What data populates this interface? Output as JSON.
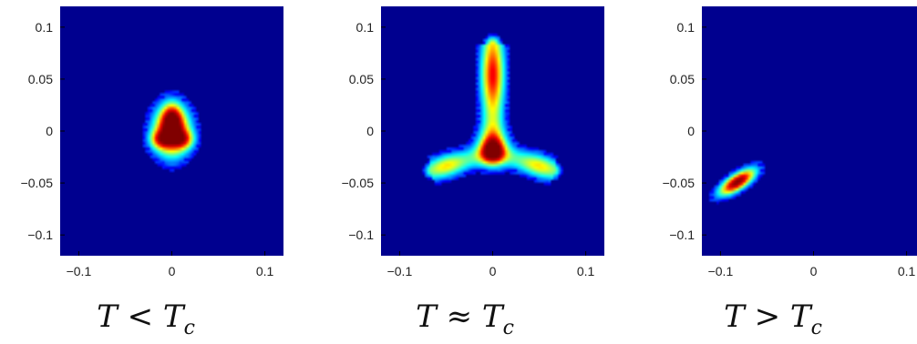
{
  "colors": {
    "background": "#00008f",
    "colormap": [
      "#00008f",
      "#0000ff",
      "#00ffff",
      "#ffff00",
      "#ff0000",
      "#800000"
    ]
  },
  "chart_data": [
    {
      "type": "heatmap",
      "caption": {
        "lhs": "T",
        "op": "<",
        "rhs": "T",
        "rhs_sub": "c"
      },
      "xlim": [
        -0.12,
        0.12
      ],
      "ylim": [
        -0.12,
        0.12
      ],
      "x_ticks": [
        -0.1,
        0,
        0.1
      ],
      "x_tick_labels": [
        "−0.1",
        "0",
        "0.1"
      ],
      "y_ticks": [
        0.1,
        0.05,
        0,
        -0.05,
        -0.1
      ],
      "y_tick_labels": [
        "0.1",
        "0.05",
        "0",
        "−0.05",
        "−0.1"
      ],
      "blobs": [
        {
          "x": 0.0,
          "y": 0.0,
          "sx": 0.013,
          "sy": 0.016,
          "rho": 0,
          "peak": 1.0
        },
        {
          "x": 0.0,
          "y": 0.012,
          "sx": 0.007,
          "sy": 0.01,
          "rho": 0,
          "peak": 0.5
        },
        {
          "x": -0.012,
          "y": -0.008,
          "sx": 0.008,
          "sy": 0.006,
          "rho": 0,
          "peak": 0.45
        },
        {
          "x": 0.012,
          "y": -0.008,
          "sx": 0.008,
          "sy": 0.006,
          "rho": 0,
          "peak": 0.45
        }
      ]
    },
    {
      "type": "heatmap",
      "caption": {
        "lhs": "T",
        "op": "≈",
        "rhs": "T",
        "rhs_sub": "c"
      },
      "xlim": [
        -0.12,
        0.12
      ],
      "ylim": [
        -0.12,
        0.12
      ],
      "x_ticks": [
        -0.1,
        0,
        0.1
      ],
      "x_tick_labels": [
        "−0.1",
        "0",
        "0.1"
      ],
      "y_ticks": [
        0.1,
        0.05,
        0,
        -0.05,
        -0.1
      ],
      "y_tick_labels": [
        "0.1",
        "0.05",
        "0",
        "−0.05",
        "−0.1"
      ],
      "arms": [
        {
          "x0": 0.0,
          "y0": -0.02,
          "x1": 0.0,
          "y1": 0.083,
          "width": 0.0085,
          "peak": 0.78,
          "peak_at": 0.72
        },
        {
          "x0": 0.0,
          "y0": -0.02,
          "x1": -0.066,
          "y1": -0.038,
          "width": 0.0075,
          "peak": 0.55,
          "peak_at": 0.75
        },
        {
          "x0": 0.0,
          "y0": -0.02,
          "x1": 0.066,
          "y1": -0.038,
          "width": 0.0075,
          "peak": 0.55,
          "peak_at": 0.75
        }
      ],
      "blobs": [
        {
          "x": 0.0,
          "y": -0.015,
          "sx": 0.012,
          "sy": 0.012,
          "rho": 0,
          "peak": 0.38
        }
      ]
    },
    {
      "type": "heatmap",
      "caption": {
        "lhs": "T",
        "op": ">",
        "rhs": "T",
        "rhs_sub": "c"
      },
      "xlim": [
        -0.12,
        0.12
      ],
      "ylim": [
        -0.12,
        0.12
      ],
      "x_ticks": [
        -0.1,
        0,
        0.1
      ],
      "x_tick_labels": [
        "−0.1",
        "0",
        "0.1"
      ],
      "y_ticks": [
        0.1,
        0.05,
        0,
        -0.05,
        -0.1
      ],
      "y_tick_labels": [
        "0.1",
        "0.05",
        "0",
        "−0.05",
        "−0.1"
      ],
      "blobs": [
        {
          "x": -0.082,
          "y": -0.049,
          "sx": 0.013,
          "sy": 0.0085,
          "rho": 0.72,
          "peak": 1.0
        }
      ]
    }
  ]
}
